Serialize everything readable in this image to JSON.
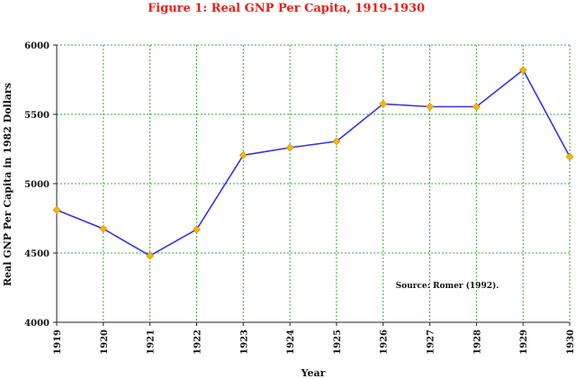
{
  "chart_data": {
    "type": "line",
    "title": "Figure 1: Real GNP Per Capita, 1919-1930",
    "xlabel": "Year",
    "ylabel": "Real GNP Per Capita in 1982 Dollars",
    "x": [
      "1919",
      "1920",
      "1921",
      "1922",
      "1923",
      "1924",
      "1925",
      "1926",
      "1927",
      "1928",
      "1929",
      "1930"
    ],
    "values": [
      4810,
      4675,
      4480,
      4670,
      5205,
      5260,
      5305,
      5575,
      5555,
      5555,
      5820,
      5195
    ],
    "ylim": [
      4000,
      6000
    ],
    "yticks": [
      "4000",
      "4500",
      "5000",
      "5500",
      "6000"
    ],
    "grid": true,
    "annotation": "Source: Romer (1992).",
    "colors": {
      "line": "#3333ee",
      "marker": "#f5b800",
      "grid": "#3aa83a",
      "title": "#e8201a"
    }
  }
}
